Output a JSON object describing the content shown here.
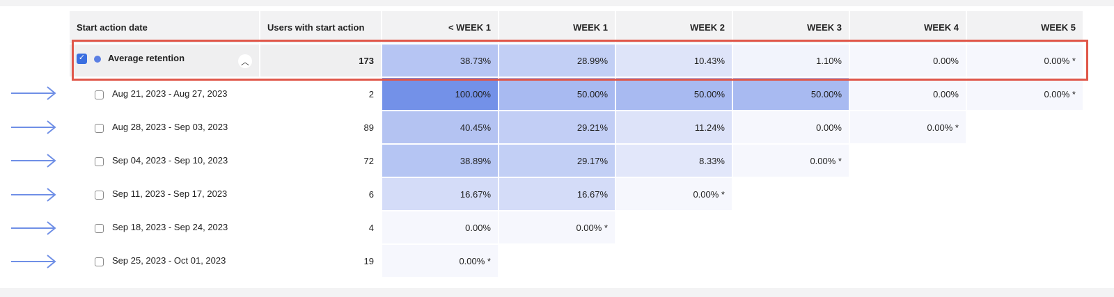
{
  "columns": [
    "Start action date",
    "Users with start action",
    "< WEEK 1",
    "WEEK 1",
    "WEEK 2",
    "WEEK 3",
    "WEEK 4",
    "WEEK 5"
  ],
  "average": {
    "label": "Average retention",
    "users": "173",
    "checked": true,
    "values": [
      "38.73%",
      "28.99%",
      "10.43%",
      "1.10%",
      "0.00%",
      "0.00% *"
    ],
    "pct": [
      38.73,
      28.99,
      10.43,
      1.1,
      0,
      0
    ]
  },
  "rows": [
    {
      "label": "Aug 21, 2023 - Aug 27, 2023",
      "users": "2",
      "values": [
        "100.00%",
        "50.00%",
        "50.00%",
        "50.00%",
        "0.00%",
        "0.00% *"
      ],
      "pct": [
        100,
        50,
        50,
        50,
        0,
        0
      ]
    },
    {
      "label": "Aug 28, 2023 - Sep 03, 2023",
      "users": "89",
      "values": [
        "40.45%",
        "29.21%",
        "11.24%",
        "0.00%",
        "0.00% *"
      ],
      "pct": [
        40.45,
        29.21,
        11.24,
        0,
        0
      ]
    },
    {
      "label": "Sep 04, 2023 - Sep 10, 2023",
      "users": "72",
      "values": [
        "38.89%",
        "29.17%",
        "8.33%",
        "0.00% *"
      ],
      "pct": [
        38.89,
        29.17,
        8.33,
        0
      ]
    },
    {
      "label": "Sep 11, 2023 - Sep 17, 2023",
      "users": "6",
      "values": [
        "16.67%",
        "16.67%",
        "0.00% *"
      ],
      "pct": [
        16.67,
        16.67,
        0
      ]
    },
    {
      "label": "Sep 18, 2023 - Sep 24, 2023",
      "users": "4",
      "values": [
        "0.00%",
        "0.00% *"
      ],
      "pct": [
        0,
        0
      ]
    },
    {
      "label": "Sep 25, 2023 - Oct 01, 2023",
      "users": "19",
      "values": [
        "0.00% *"
      ],
      "pct": [
        0
      ]
    }
  ],
  "colors": {
    "heat_low": "#f6f7fd",
    "heat_high": "#7391e8",
    "highlight": "#e0574a",
    "arrow": "#6f8fe6"
  }
}
